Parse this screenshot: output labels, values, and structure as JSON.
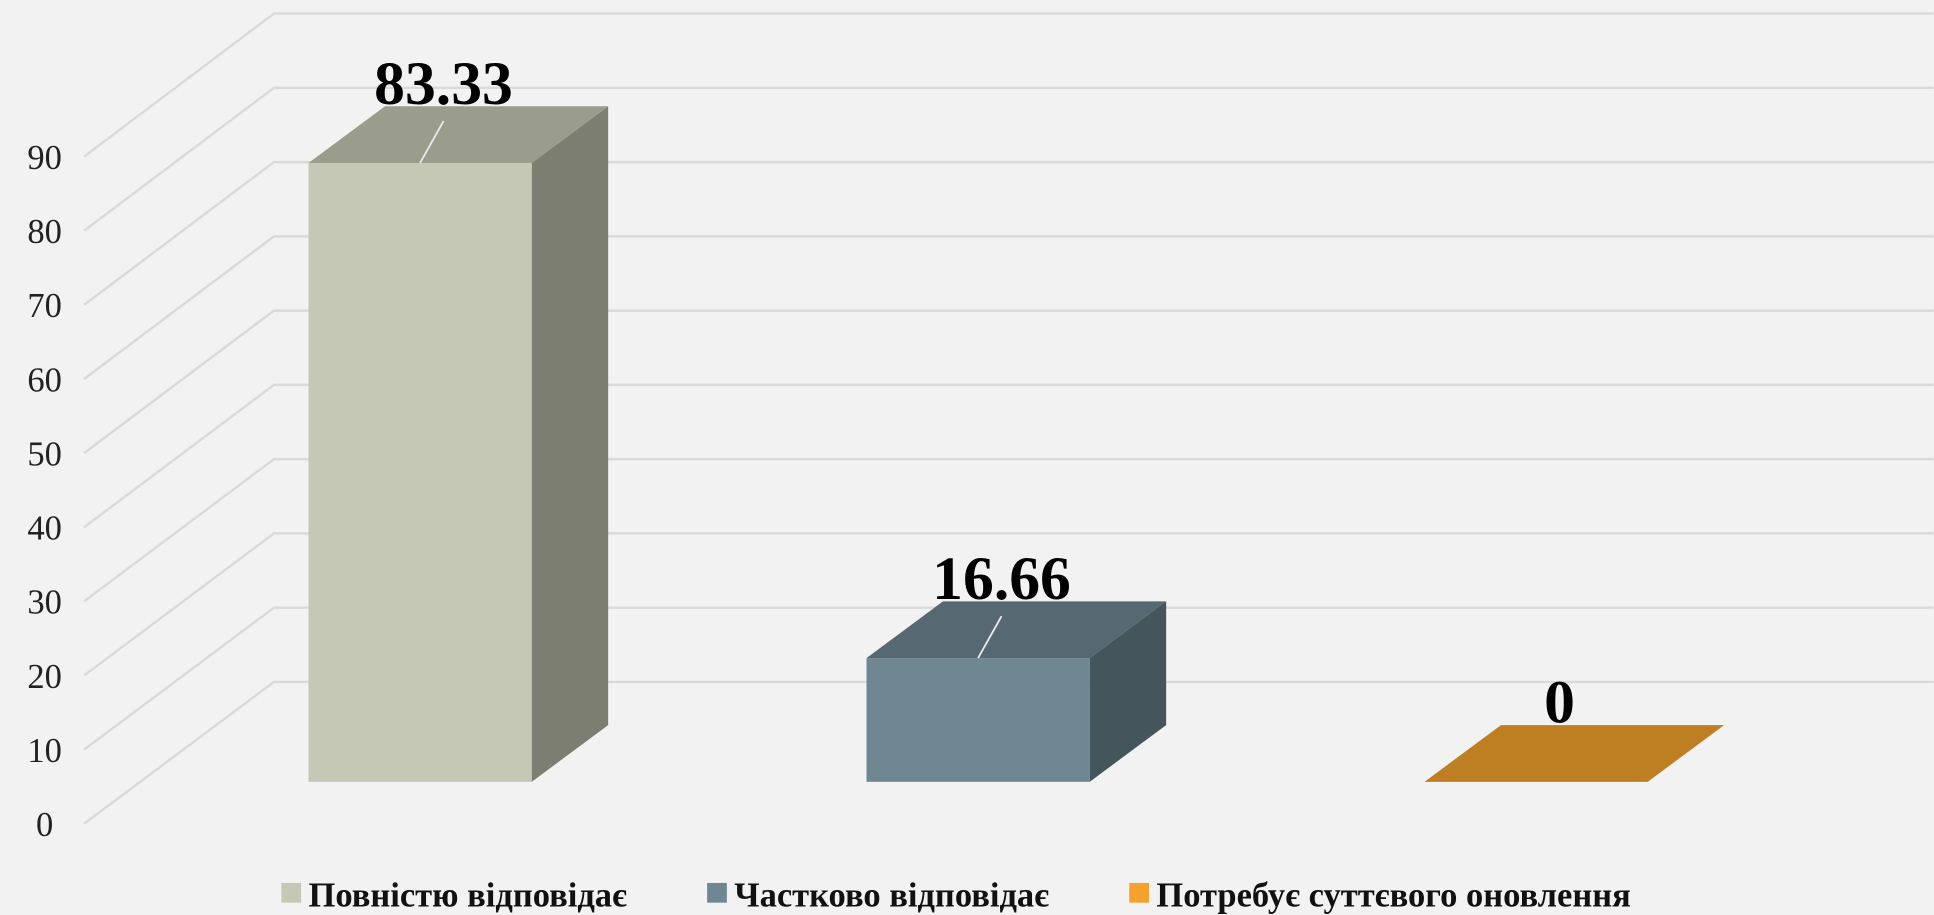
{
  "chart_data": {
    "type": "bar3d",
    "series": [
      {
        "name": "Повністю відповідає",
        "color": "#c5c8b4",
        "values": [
          83.33
        ]
      },
      {
        "name": "Частково відповідає",
        "color": "#6e8792",
        "values": [
          16.66
        ]
      },
      {
        "name": "Потребує суттєвого оновлення",
        "color": "#f4a22b",
        "values": [
          0
        ]
      }
    ],
    "ylim": [
      0,
      90
    ],
    "yticks": [
      0,
      10,
      20,
      30,
      40,
      50,
      60,
      70,
      80,
      90
    ],
    "grid": true,
    "legend": "bottom"
  }
}
